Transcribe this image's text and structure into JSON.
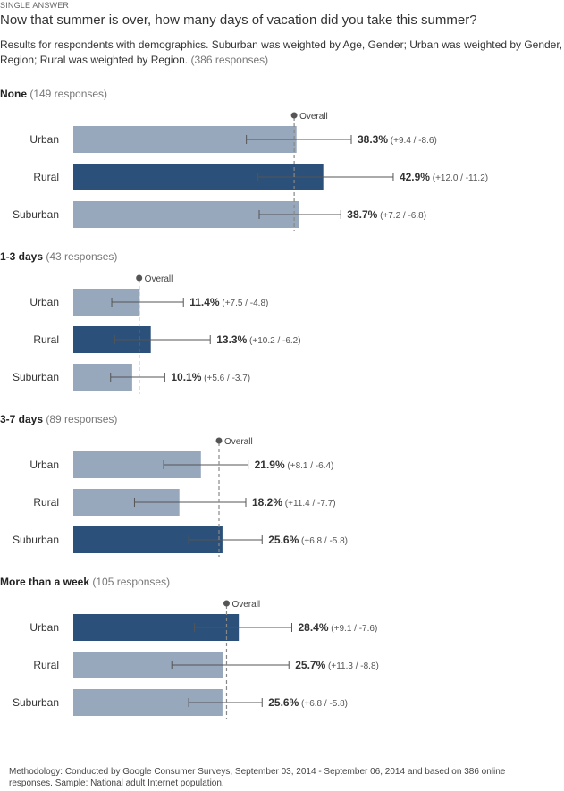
{
  "header": {
    "kicker": "SINGLE ANSWER",
    "title": "Now that summer is over, how many days of vacation did you take this summer?",
    "subtitle": "Results for respondents with demographics. Suburban was weighted by Age, Gender; Urban was weighted by Gender, Region; Rural was weighted by Region.",
    "responses": "(386 responses)"
  },
  "footer": {
    "methodology": "Methodology: Conducted by Google Consumer Surveys, September 03, 2014 - September 06, 2014 and based on 386 online responses. Sample: National adult Internet population."
  },
  "colors": {
    "bar_light": "#97a8bd",
    "bar_dark": "#2b5079",
    "error_bar": "#555555",
    "overall_line": "#888888"
  },
  "chart_data": {
    "type": "bar",
    "orientation": "horizontal",
    "overall_label": "Overall",
    "xlim": [
      0,
      50
    ],
    "groups": [
      {
        "name": "None",
        "responses": "(149 responses)",
        "overall": 37.9,
        "rows": [
          {
            "category": "Urban",
            "value": 38.3,
            "label": "38.3%",
            "ci": "(+9.4 / -8.6)",
            "plus": 9.4,
            "minus": 8.6,
            "highlight": false
          },
          {
            "category": "Rural",
            "value": 42.9,
            "label": "42.9%",
            "ci": "(+12.0 / -11.2)",
            "plus": 12.0,
            "minus": 11.2,
            "highlight": true
          },
          {
            "category": "Suburban",
            "value": 38.7,
            "label": "38.7%",
            "ci": "(+7.2 / -6.8)",
            "plus": 7.2,
            "minus": 6.8,
            "highlight": false
          }
        ]
      },
      {
        "name": "1-3 days",
        "responses": "(43 responses)",
        "overall": 11.3,
        "rows": [
          {
            "category": "Urban",
            "value": 11.4,
            "label": "11.4%",
            "ci": "(+7.5 / -4.8)",
            "plus": 7.5,
            "minus": 4.8,
            "highlight": false
          },
          {
            "category": "Rural",
            "value": 13.3,
            "label": "13.3%",
            "ci": "(+10.2 / -6.2)",
            "plus": 10.2,
            "minus": 6.2,
            "highlight": true
          },
          {
            "category": "Suburban",
            "value": 10.1,
            "label": "10.1%",
            "ci": "(+5.6 / -3.7)",
            "plus": 5.6,
            "minus": 3.7,
            "highlight": false
          }
        ]
      },
      {
        "name": "3-7 days",
        "responses": "(89 responses)",
        "overall": 25.0,
        "rows": [
          {
            "category": "Urban",
            "value": 21.9,
            "label": "21.9%",
            "ci": "(+8.1 / -6.4)",
            "plus": 8.1,
            "minus": 6.4,
            "highlight": false
          },
          {
            "category": "Rural",
            "value": 18.2,
            "label": "18.2%",
            "ci": "(+11.4 / -7.7)",
            "plus": 11.4,
            "minus": 7.7,
            "highlight": false
          },
          {
            "category": "Suburban",
            "value": 25.6,
            "label": "25.6%",
            "ci": "(+6.8 / -5.8)",
            "plus": 6.8,
            "minus": 5.8,
            "highlight": true
          }
        ]
      },
      {
        "name": "More than a week",
        "responses": "(105 responses)",
        "overall": 26.3,
        "rows": [
          {
            "category": "Urban",
            "value": 28.4,
            "label": "28.4%",
            "ci": "(+9.1 / -7.6)",
            "plus": 9.1,
            "minus": 7.6,
            "highlight": true
          },
          {
            "category": "Rural",
            "value": 25.7,
            "label": "25.7%",
            "ci": "(+11.3 / -8.8)",
            "plus": 11.3,
            "minus": 8.8,
            "highlight": false
          },
          {
            "category": "Suburban",
            "value": 25.6,
            "label": "25.6%",
            "ci": "(+6.8 / -5.8)",
            "plus": 6.8,
            "minus": 5.8,
            "highlight": false
          }
        ]
      }
    ]
  }
}
